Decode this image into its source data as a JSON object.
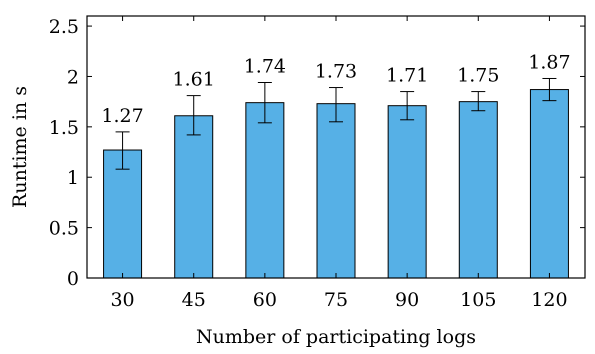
{
  "chart_data": {
    "type": "bar",
    "title": "",
    "xlabel": "Number of participating logs",
    "ylabel": "Runtime in s",
    "categories": [
      "30",
      "45",
      "60",
      "75",
      "90",
      "105",
      "120"
    ],
    "values": [
      1.27,
      1.61,
      1.74,
      1.73,
      1.71,
      1.75,
      1.87
    ],
    "value_labels": [
      "1.27",
      "1.61",
      "1.74",
      "1.73",
      "1.71",
      "1.75",
      "1.87"
    ],
    "error_low": [
      1.08,
      1.42,
      1.54,
      1.55,
      1.57,
      1.66,
      1.76
    ],
    "error_high": [
      1.45,
      1.81,
      1.94,
      1.89,
      1.85,
      1.85,
      1.98
    ],
    "ylim": [
      0,
      2.6
    ],
    "yticks": [
      0,
      0.5,
      1,
      1.5,
      2,
      2.5
    ],
    "ytick_labels": [
      "0",
      "0.5",
      "1",
      "1.5",
      "2",
      "2.5"
    ],
    "grid": false,
    "legend": "none",
    "colors": {
      "bar_fill": "#56b0e6",
      "bar_stroke": "#000000",
      "axis": "#000000"
    }
  }
}
